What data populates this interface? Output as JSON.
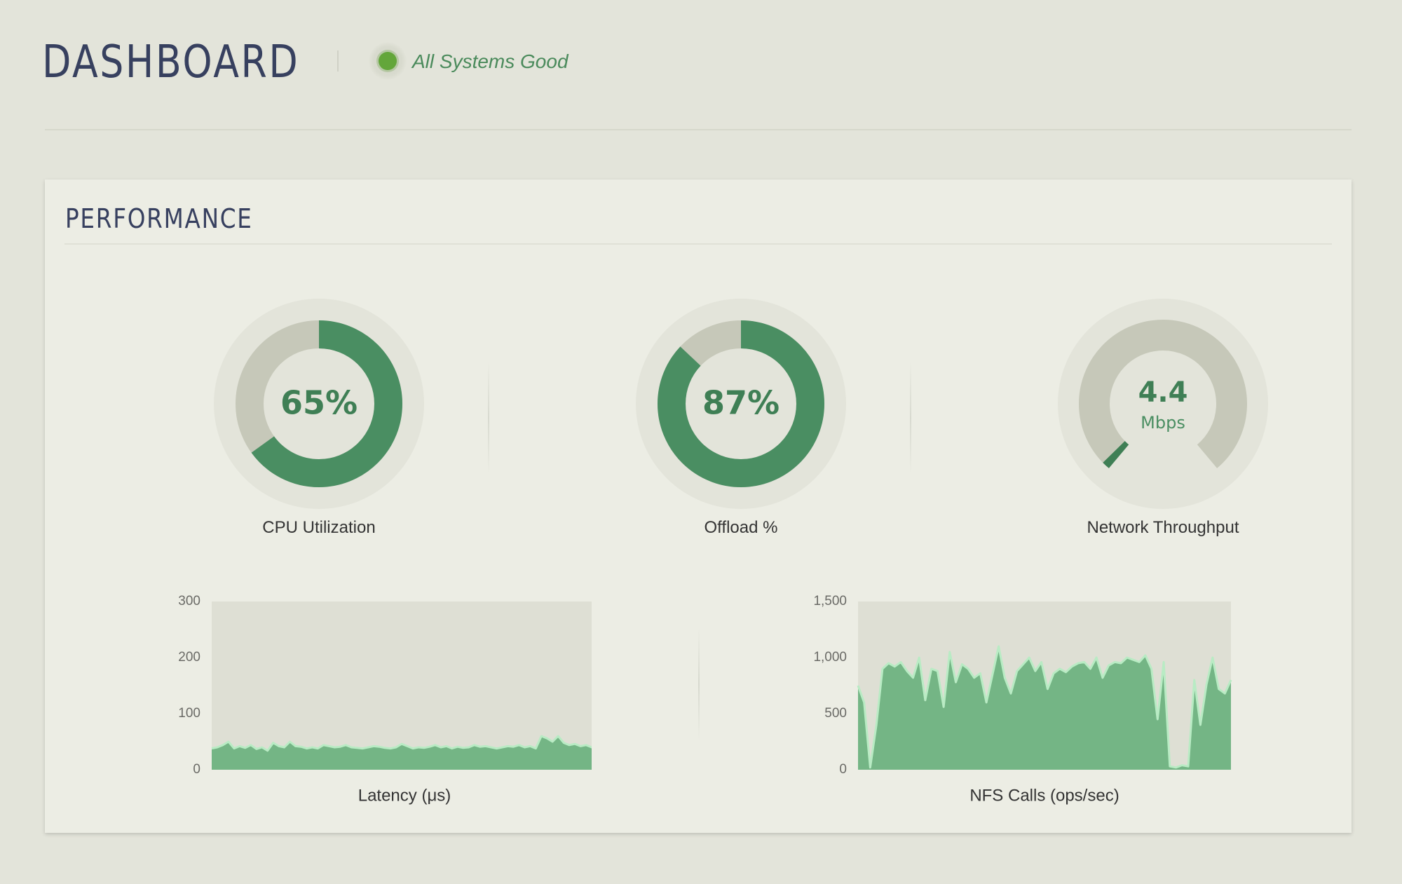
{
  "header": {
    "title": "DASHBOARD",
    "status_text": "All Systems Good",
    "status_color": "#63a63a"
  },
  "performance": {
    "title": "PERFORMANCE",
    "gauges": [
      {
        "label": "CPU Utilization",
        "value_text": "65%",
        "fraction": 0.65
      },
      {
        "label": "Offload %",
        "value_text": "87%",
        "fraction": 0.87
      },
      {
        "label": "Network Throughput",
        "value_text": "4.4",
        "unit": "Mbps",
        "fraction": 0.02
      }
    ]
  },
  "colors": {
    "accent": "#4a8e62",
    "accent_dark": "#3f7f55",
    "track": "#c6c8b9",
    "area_fill": "#74b585",
    "area_line": "#b9ebc4",
    "plot_bg": "#dedfd4",
    "title": "#37405f"
  },
  "chart_data": [
    {
      "type": "area",
      "xlabel": "Latency (μs)",
      "ylim": [
        0,
        300
      ],
      "yticks": [
        "300",
        "200",
        "100",
        "0"
      ],
      "values": [
        38,
        40,
        44,
        50,
        38,
        42,
        39,
        44,
        37,
        40,
        34,
        48,
        42,
        40,
        50,
        42,
        41,
        38,
        40,
        38,
        44,
        42,
        40,
        41,
        44,
        40,
        39,
        38,
        40,
        42,
        41,
        39,
        38,
        40,
        46,
        42,
        38,
        40,
        39,
        41,
        44,
        40,
        42,
        38,
        41,
        39,
        40,
        44,
        41,
        42,
        40,
        38,
        40,
        42,
        41,
        44,
        40,
        42,
        38,
        60,
        56,
        50,
        60,
        48,
        44,
        46,
        42,
        44,
        40,
        44
      ]
    },
    {
      "type": "area",
      "xlabel": "NFS Calls (ops/sec)",
      "ylim": [
        0,
        1500
      ],
      "yticks": [
        "1,500",
        "1,000",
        "500",
        "0"
      ],
      "values": [
        750,
        600,
        20,
        400,
        900,
        950,
        920,
        960,
        880,
        820,
        1000,
        620,
        900,
        880,
        560,
        1050,
        780,
        940,
        900,
        820,
        860,
        600,
        850,
        1100,
        820,
        680,
        880,
        940,
        1000,
        880,
        960,
        720,
        860,
        900,
        870,
        920,
        950,
        960,
        900,
        1000,
        820,
        930,
        960,
        950,
        1000,
        980,
        960,
        1020,
        900,
        450,
        960,
        30,
        20,
        40,
        30,
        800,
        400,
        760,
        1000,
        720,
        680,
        800
      ]
    }
  ]
}
